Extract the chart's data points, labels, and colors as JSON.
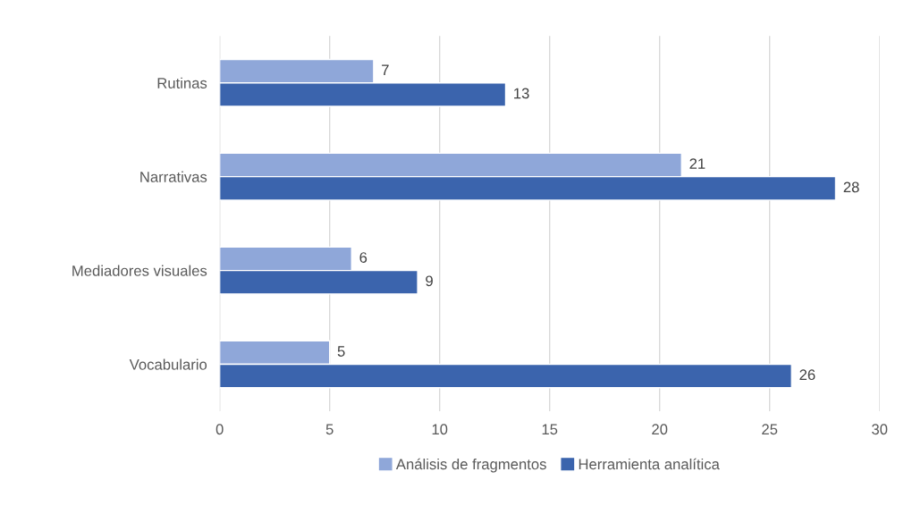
{
  "chart_data": {
    "type": "bar",
    "orientation": "horizontal",
    "categories": [
      "Rutinas",
      "Narrativas",
      "Mediadores visuales",
      "Vocabulario"
    ],
    "series": [
      {
        "name": "Análisis de fragmentos",
        "color": "#8fa7d9",
        "values": [
          7,
          21,
          6,
          5
        ]
      },
      {
        "name": "Herramienta analítica",
        "color": "#3b64ad",
        "values": [
          13,
          28,
          9,
          26
        ]
      }
    ],
    "xlim": [
      0,
      30
    ],
    "xticks": [
      0,
      5,
      10,
      15,
      20,
      25,
      30
    ],
    "grid": "x",
    "legend": "bottom",
    "data_labels": true
  }
}
